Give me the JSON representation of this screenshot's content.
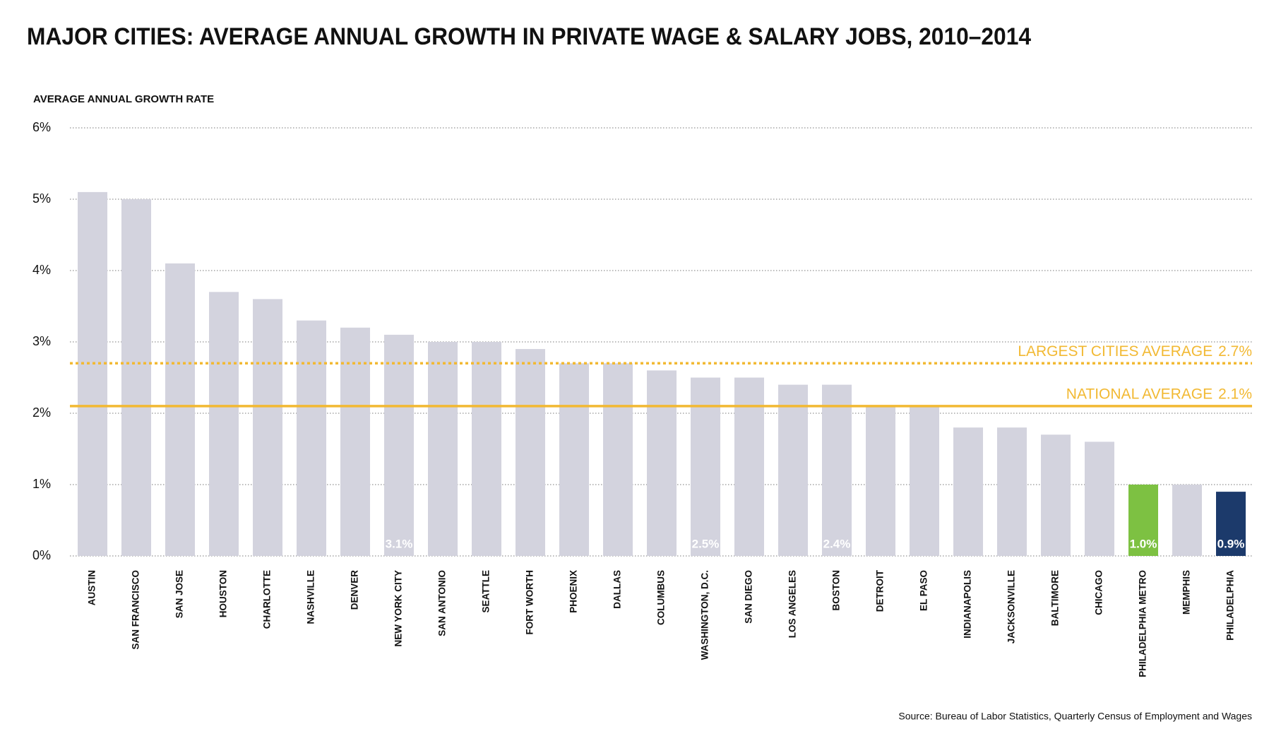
{
  "chart_data": {
    "type": "bar",
    "title": "MAJOR CITIES: AVERAGE ANNUAL GROWTH IN PRIVATE WAGE & SALARY JOBS, 2010–2014",
    "y_axis_label": "AVERAGE ANNUAL GROWTH RATE",
    "categories": [
      "AUSTIN",
      "SAN FRANCISCO",
      "SAN JOSE",
      "HOUSTON",
      "CHARLOTTE",
      "NASHVILLE",
      "DENVER",
      "NEW YORK CITY",
      "SAN ANTONIO",
      "SEATTLE",
      "FORT WORTH",
      "PHOENIX",
      "DALLAS",
      "COLUMBUS",
      "WASHINGTON, D.C.",
      "SAN DIEGO",
      "LOS ANGELES",
      "BOSTON",
      "DETROIT",
      "EL PASO",
      "INDIANAPOLIS",
      "JACKSONVILLE",
      "BALTIMORE",
      "CHICAGO",
      "PHILADELPHIA METRO",
      "MEMPHIS",
      "PHILADELPHIA"
    ],
    "values": [
      5.1,
      5.0,
      4.1,
      3.7,
      3.6,
      3.3,
      3.2,
      3.1,
      3.0,
      3.0,
      2.9,
      2.7,
      2.7,
      2.6,
      2.5,
      2.5,
      2.4,
      2.4,
      2.1,
      2.1,
      1.8,
      1.8,
      1.7,
      1.6,
      1.0,
      1.0,
      0.9
    ],
    "value_labels": [
      null,
      null,
      null,
      null,
      null,
      null,
      null,
      "3.1%",
      null,
      null,
      null,
      null,
      null,
      null,
      "2.5%",
      null,
      null,
      "2.4%",
      null,
      null,
      null,
      null,
      null,
      null,
      "1.0%",
      null,
      "0.9%"
    ],
    "colors": [
      "#d3d3de",
      "#d3d3de",
      "#d3d3de",
      "#d3d3de",
      "#d3d3de",
      "#d3d3de",
      "#d3d3de",
      "#d3d3de",
      "#d3d3de",
      "#d3d3de",
      "#d3d3de",
      "#d3d3de",
      "#d3d3de",
      "#d3d3de",
      "#d3d3de",
      "#d3d3de",
      "#d3d3de",
      "#d3d3de",
      "#d3d3de",
      "#d3d3de",
      "#d3d3de",
      "#d3d3de",
      "#d3d3de",
      "#d3d3de",
      "#7dc142",
      "#d3d3de",
      "#1c3a6b"
    ],
    "ylim": [
      0,
      6
    ],
    "yticks": [
      {
        "value": 0,
        "label": "0%"
      },
      {
        "value": 1,
        "label": "1%"
      },
      {
        "value": 2,
        "label": "2%"
      },
      {
        "value": 3,
        "label": "3%"
      },
      {
        "value": 4,
        "label": "4%"
      },
      {
        "value": 5,
        "label": "5%"
      },
      {
        "value": 6,
        "label": "6%"
      }
    ],
    "grid": true,
    "reference_lines": [
      {
        "label": "LARGEST CITIES AVERAGE",
        "value": 2.7,
        "value_label": "2.7%",
        "style": "dotted",
        "color": "#f2b933"
      },
      {
        "label": "NATIONAL AVERAGE",
        "value": 2.1,
        "value_label": "2.1%",
        "style": "solid",
        "color": "#f2b933"
      }
    ],
    "source": "Source: Bureau of Labor Statistics, Quarterly Census of Employment and Wages"
  }
}
